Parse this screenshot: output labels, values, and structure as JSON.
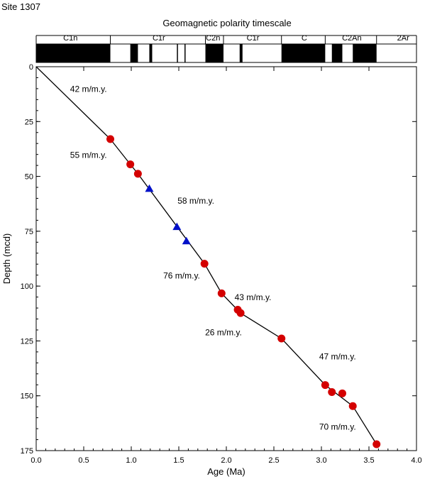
{
  "site_label": "Site 1307",
  "chart_data": {
    "type": "scatter",
    "title": "Geomagnetic polarity timescale",
    "xlabel": "Age (Ma)",
    "ylabel": "Depth (mcd)",
    "xlim": [
      0,
      4.0
    ],
    "ylim": [
      0,
      175
    ],
    "y_inverted": true,
    "x_ticks": [
      0.0,
      0.5,
      1.0,
      1.5,
      2.0,
      2.5,
      3.0,
      3.5,
      4.0
    ],
    "x_tick_labels": [
      "0.0",
      "0.5",
      "1.0",
      "1.5",
      "2.0",
      "2.5",
      "3.0",
      "3.5",
      "4.0"
    ],
    "y_ticks": [
      0,
      25,
      50,
      75,
      100,
      125,
      150,
      175
    ],
    "y_tick_labels": [
      "0",
      "25",
      "50",
      "75",
      "100",
      "125",
      "150",
      "175"
    ],
    "grid": false,
    "series": [
      {
        "marker": "circle",
        "color": "#d40000",
        "points": [
          [
            0.78,
            33.0
          ],
          [
            0.99,
            44.5
          ],
          [
            1.07,
            48.8
          ],
          [
            1.77,
            89.8
          ],
          [
            1.95,
            103.3
          ],
          [
            2.12,
            110.8
          ],
          [
            2.15,
            112.3
          ],
          [
            2.58,
            123.9
          ],
          [
            3.04,
            145.1
          ],
          [
            3.11,
            148.3
          ],
          [
            3.22,
            148.9
          ],
          [
            3.33,
            154.7
          ],
          [
            3.58,
            172.1
          ]
        ]
      },
      {
        "marker": "triangle",
        "color": "#0010c8",
        "points": [
          [
            1.19,
            55.6
          ],
          [
            1.48,
            73.0
          ],
          [
            1.58,
            79.5
          ]
        ]
      }
    ],
    "age_depth_line": [
      [
        0.0,
        0.0
      ],
      [
        0.78,
        33.0
      ],
      [
        0.99,
        44.5
      ],
      [
        1.07,
        48.8
      ],
      [
        1.77,
        89.8
      ],
      [
        1.95,
        103.3
      ],
      [
        2.15,
        112.3
      ],
      [
        2.58,
        123.9
      ],
      [
        3.04,
        145.1
      ],
      [
        3.33,
        154.7
      ],
      [
        3.58,
        172.1
      ]
    ],
    "annotations": [
      {
        "text": "42 m/m.y.",
        "x": 0.55,
        "y": 11.5
      },
      {
        "text": "55 m/m.y.",
        "x": 0.55,
        "y": 41.5
      },
      {
        "text": "58 m/m.y.",
        "x": 1.68,
        "y": 62.5
      },
      {
        "text": "76 m/m.y.",
        "x": 1.53,
        "y": 96.5
      },
      {
        "text": "43 m/m.y.",
        "x": 2.28,
        "y": 106.5
      },
      {
        "text": "26 m/m.y.",
        "x": 1.97,
        "y": 122.5
      },
      {
        "text": "47 m/m.y.",
        "x": 3.17,
        "y": 133.5
      },
      {
        "text": "70  m/m.y.",
        "x": 3.17,
        "y": 165.5
      }
    ],
    "polarity_timescale": {
      "normal_intervals": [
        [
          0.0,
          0.78
        ],
        [
          0.99,
          1.07
        ],
        [
          1.19,
          1.22
        ],
        [
          1.48,
          1.49
        ],
        [
          1.56,
          1.57
        ],
        [
          1.78,
          1.97
        ],
        [
          2.14,
          2.17
        ],
        [
          2.58,
          3.04
        ],
        [
          3.11,
          3.22
        ],
        [
          3.33,
          3.58
        ]
      ],
      "chron_labels": [
        {
          "text": "C1n",
          "age": 0.36
        },
        {
          "text": "C1r",
          "age": 1.29
        },
        {
          "text": "C2n",
          "age": 1.86
        },
        {
          "text": "C1r",
          "age": 2.28
        },
        {
          "text": "C",
          "age": 2.82
        },
        {
          "text": "C2An",
          "age": 3.32
        },
        {
          "text": "2Ar",
          "age": 3.86
        }
      ],
      "label_dividers": [
        0.78,
        1.78,
        1.97,
        2.58,
        3.04,
        3.58
      ]
    }
  }
}
